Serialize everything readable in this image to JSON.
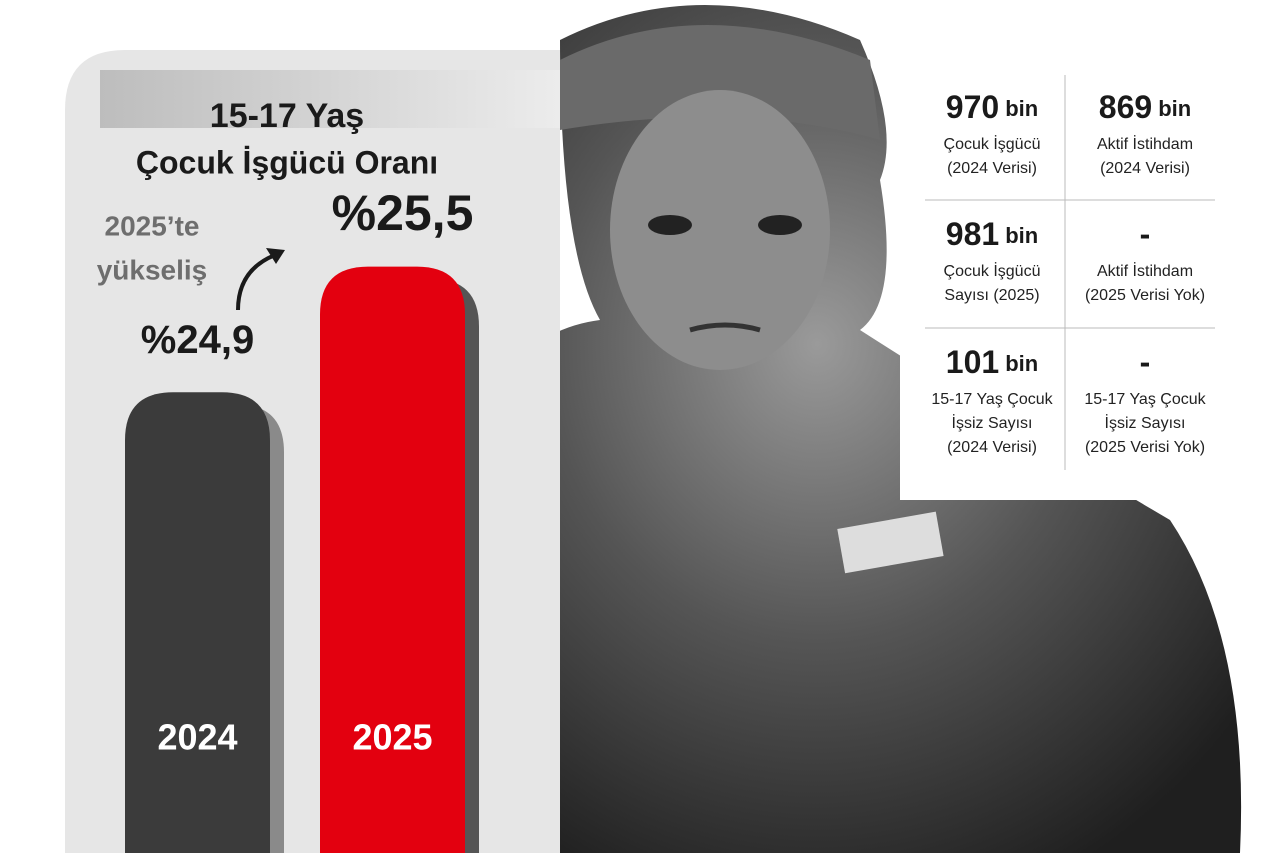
{
  "chart_data": {
    "type": "bar",
    "title": "15-17 Yaş",
    "subtitle": "Çocuk İşgücü Oranı",
    "annotation": [
      "2025’te",
      "yükseliş"
    ],
    "categories": [
      "2024",
      "2025"
    ],
    "values": [
      24.9,
      25.5
    ],
    "value_labels": [
      "%24,9",
      "%25,5"
    ],
    "colors": [
      "#3b3b3b",
      "#e3000f"
    ],
    "ylim": [
      22.7,
      26.2
    ]
  },
  "table": {
    "rows": [
      [
        {
          "value": "970",
          "unit": "bin",
          "lines": [
            "Çocuk İşgücü",
            "(2024 Verisi)"
          ]
        },
        {
          "value": "869",
          "unit": "bin",
          "lines": [
            "Aktif İstihdam",
            "(2024 Verisi)"
          ]
        }
      ],
      [
        {
          "value": "981",
          "unit": "bin",
          "lines": [
            "Çocuk İşgücü",
            "Sayısı (2025)"
          ]
        },
        {
          "value": "-",
          "lines": [
            "Aktif İstihdam",
            "(2025 Verisi Yok)"
          ]
        }
      ],
      [
        {
          "value": "101",
          "unit": "bin",
          "lines": [
            "15-17 Yaş Çocuk",
            "İşsiz Sayısı",
            "(2024 Verisi)"
          ]
        },
        {
          "value": "-",
          "lines": [
            "15-17 Yaş Çocuk",
            "İşsiz Sayısı",
            "(2025 Verisi Yok)"
          ]
        }
      ]
    ]
  }
}
